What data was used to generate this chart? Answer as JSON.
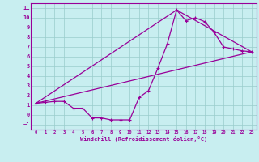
{
  "title": "",
  "xlabel": "Windchill (Refroidissement éolien,°C)",
  "ylabel": "",
  "background_color": "#c8eef0",
  "line_color": "#990099",
  "grid_color": "#99cccc",
  "xlim": [
    -0.5,
    23.5
  ],
  "ylim": [
    -1.5,
    11.5
  ],
  "xticks": [
    0,
    1,
    2,
    3,
    4,
    5,
    6,
    7,
    8,
    9,
    10,
    11,
    12,
    13,
    14,
    15,
    16,
    17,
    18,
    19,
    20,
    21,
    22,
    23
  ],
  "yticks": [
    -1,
    0,
    1,
    2,
    3,
    4,
    5,
    6,
    7,
    8,
    9,
    10,
    11
  ],
  "series1_x": [
    0,
    1,
    2,
    3,
    4,
    5,
    6,
    7,
    8,
    9,
    10,
    11,
    12,
    13,
    14,
    15,
    16,
    17,
    18,
    19,
    20,
    21,
    22,
    23
  ],
  "series1_y": [
    1.2,
    1.3,
    1.4,
    1.4,
    0.7,
    0.7,
    -0.3,
    -0.3,
    -0.5,
    -0.5,
    -0.5,
    1.8,
    2.5,
    4.8,
    7.3,
    10.8,
    9.7,
    10.0,
    9.6,
    8.5,
    7.0,
    6.8,
    6.6,
    6.5
  ],
  "series2_x": [
    0,
    23
  ],
  "series2_y": [
    1.2,
    6.5
  ],
  "series3_x": [
    0,
    15,
    23
  ],
  "series3_y": [
    1.2,
    10.8,
    6.5
  ]
}
